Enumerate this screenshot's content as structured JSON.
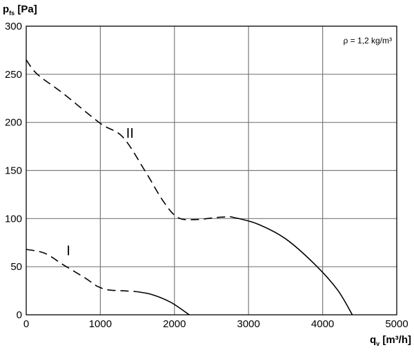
{
  "chart_data": {
    "type": "line",
    "ylabel": {
      "main": "p",
      "sub": "fs",
      "unit": " [Pa]"
    },
    "xlabel": {
      "main": "q",
      "sub": "v",
      "unit": " [m³/h]"
    },
    "annotation": "ρ = 1,2 kg/m³",
    "xlim": [
      0,
      5000
    ],
    "ylim": [
      0,
      300
    ],
    "xticks": [
      0,
      1000,
      2000,
      3000,
      4000,
      5000
    ],
    "yticks": [
      0,
      50,
      100,
      150,
      200,
      250,
      300
    ],
    "grid": true,
    "series": [
      {
        "name": "II",
        "segments": [
          {
            "style": "dashed",
            "points": [
              [
                0,
                265
              ],
              [
                150,
                250
              ],
              [
                500,
                230
              ],
              [
                1000,
                199
              ],
              [
                1300,
                185
              ],
              [
                1600,
                150
              ],
              [
                1850,
                118
              ],
              [
                2050,
                101
              ],
              [
                2300,
                99
              ],
              [
                2550,
                101
              ],
              [
                2750,
                102
              ]
            ]
          },
          {
            "style": "solid",
            "points": [
              [
                2750,
                102
              ],
              [
                3100,
                95
              ],
              [
                3500,
                79
              ],
              [
                3900,
                52
              ],
              [
                4200,
                26
              ],
              [
                4400,
                0
              ]
            ]
          }
        ]
      },
      {
        "name": "I",
        "segments": [
          {
            "style": "dashed",
            "points": [
              [
                0,
                68
              ],
              [
                250,
                64
              ],
              [
                500,
                52
              ],
              [
                800,
                38
              ],
              [
                950,
                30
              ],
              [
                1100,
                26
              ],
              [
                1300,
                25
              ],
              [
                1500,
                24
              ]
            ]
          },
          {
            "style": "solid",
            "points": [
              [
                1500,
                24
              ],
              [
                1700,
                21
              ],
              [
                1950,
                13
              ],
              [
                2200,
                0
              ]
            ]
          }
        ]
      }
    ],
    "series_label_positions": [
      {
        "label": "II",
        "x": 1400,
        "y": 184
      },
      {
        "label": "I",
        "x": 570,
        "y": 62
      }
    ]
  }
}
